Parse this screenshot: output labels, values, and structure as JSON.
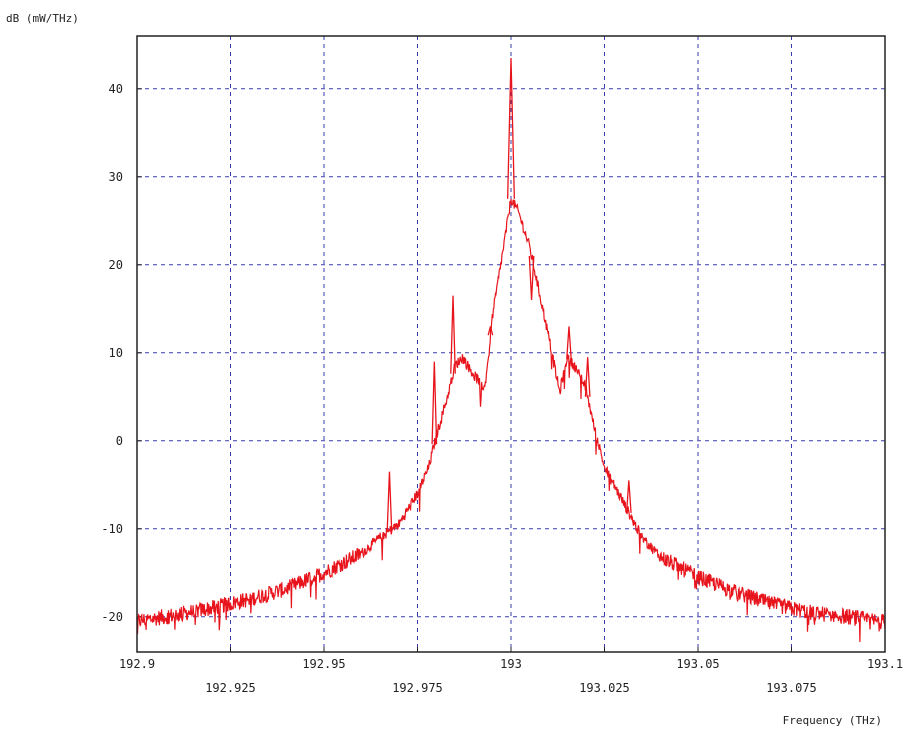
{
  "chart_data": {
    "type": "line",
    "title": "",
    "ylabel": "dB (mW/THz)",
    "xlabel": "Frequency (THz)",
    "xlim": [
      192.9,
      193.1
    ],
    "ylim": [
      -24,
      46
    ],
    "grid": true,
    "x_ticks_row1": [
      "192.9",
      "192.95",
      "193",
      "193.05",
      "193.1"
    ],
    "x_ticks_row2": [
      "192.925",
      "192.975",
      "193.025",
      "193.075"
    ],
    "y_ticks": [
      "40",
      "30",
      "20",
      "10",
      "0",
      "-10",
      "-20"
    ],
    "series": [
      {
        "color": "#e8141c",
        "x": [
          192.9,
          192.91,
          192.92,
          192.93,
          192.94,
          192.95,
          192.96,
          192.965,
          192.97,
          192.975,
          192.978,
          192.98,
          192.983,
          192.985,
          192.987,
          192.99,
          192.993,
          192.995,
          192.998,
          193.0,
          193.002,
          193.005,
          193.007,
          193.01,
          193.013,
          193.015,
          193.017,
          193.02,
          193.022,
          193.025,
          193.03,
          193.035,
          193.04,
          193.05,
          193.06,
          193.07,
          193.08,
          193.09,
          193.1
        ],
        "y": [
          -20.5,
          -19.8,
          -19.0,
          -18.0,
          -16.8,
          -15.0,
          -12.8,
          -11.0,
          -9.5,
          -6.0,
          -3.0,
          0.5,
          5.0,
          8.5,
          9.5,
          7.5,
          6.0,
          14.0,
          22.0,
          27.5,
          26.0,
          22.0,
          18.0,
          12.0,
          5.5,
          9.5,
          8.5,
          6.0,
          2.0,
          -3.0,
          -7.0,
          -11.0,
          -13.2,
          -15.5,
          -17.2,
          -18.6,
          -19.5,
          -20.0,
          -20.6
        ]
      }
    ],
    "spikes": [
      {
        "x": 192.9675,
        "y": -3.5
      },
      {
        "x": 192.9795,
        "y": 9.0
      },
      {
        "x": 192.9845,
        "y": 16.5
      },
      {
        "x": 192.9945,
        "y": 13.0
      },
      {
        "x": 193.0,
        "y": 43.5
      },
      {
        "x": 193.0055,
        "y": 16.0
      },
      {
        "x": 193.0155,
        "y": 13.0
      },
      {
        "x": 193.0205,
        "y": 9.5
      },
      {
        "x": 193.0315,
        "y": -4.5
      }
    ]
  }
}
